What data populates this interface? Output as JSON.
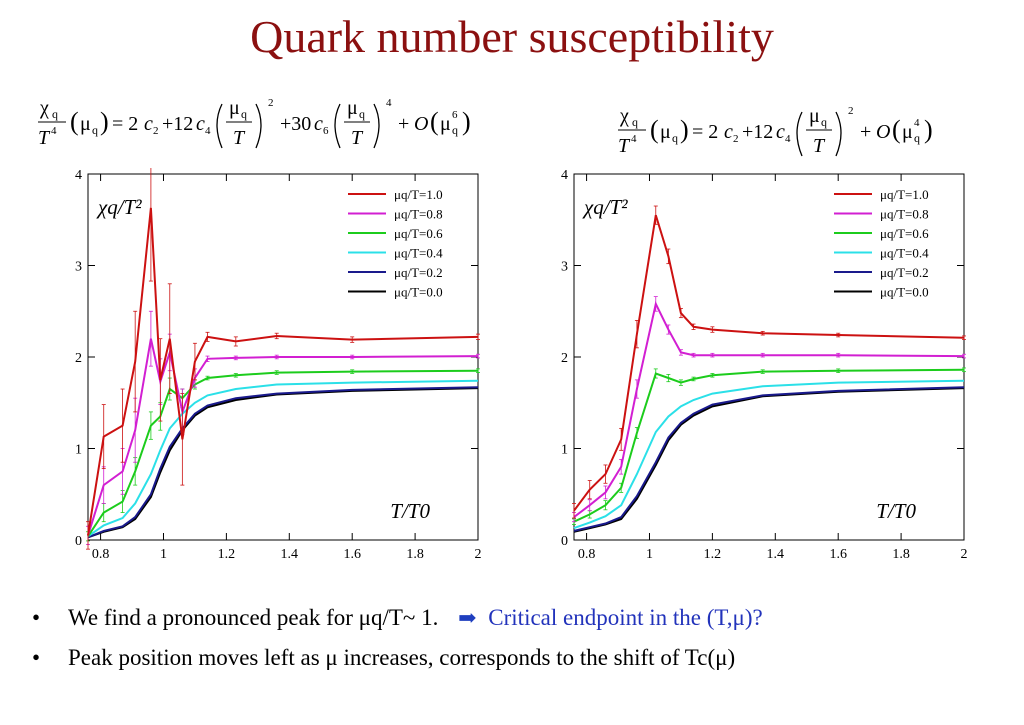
{
  "title": "Quark number susceptibility",
  "formulas": {
    "left": "χq/T⁴(μq) = 2c₂ + 12c₄(μq/T)² + 30c₆(μq/T)⁴ + O(μq⁶)",
    "right": "χq/T⁴(μq) = 2c₂ + 12c₄(μq/T)² + O(μq⁴)"
  },
  "bullets": [
    {
      "text": "We find a pronounced peak for μq/T~ 1.",
      "link": "Critical endpoint in the (T,μ)?"
    },
    {
      "text": "Peak position moves left as μ increases, corresponds to the shift of Tc(μ)"
    }
  ],
  "colors": {
    "title": "#8b1010",
    "red": "#cc1111",
    "magenta": "#d21fd2",
    "green": "#1ccc1c",
    "cyan": "#2be0e8",
    "blue": "#1a1a8c",
    "black": "#000000",
    "link": "#2233bb"
  },
  "chart_data": [
    {
      "type": "line",
      "ylabel": "χq/T²",
      "xlabel": "T/T0",
      "xlim": [
        0.76,
        2.0
      ],
      "ylim": [
        0,
        4
      ],
      "xticks": [
        "0.8",
        "1",
        "1.2",
        "1.4",
        "1.6",
        "1.8",
        "2"
      ],
      "yticks": [
        "0",
        "1",
        "2",
        "3",
        "4"
      ],
      "legend_position": "top-right",
      "x": [
        0.76,
        0.81,
        0.87,
        0.91,
        0.96,
        0.99,
        1.02,
        1.06,
        1.1,
        1.14,
        1.23,
        1.36,
        1.6,
        2.0
      ],
      "series": [
        {
          "name": "μq/T=1.0",
          "color": "red",
          "values": [
            0.05,
            1.13,
            1.25,
            1.95,
            3.63,
            1.75,
            2.2,
            1.1,
            1.95,
            2.22,
            2.17,
            2.23,
            2.19,
            2.22
          ],
          "errors": [
            0.15,
            0.35,
            0.4,
            0.55,
            0.8,
            0.45,
            0.6,
            0.5,
            0.2,
            0.05,
            0.05,
            0.03,
            0.03,
            0.03
          ]
        },
        {
          "name": "μq/T=0.8",
          "color": "magenta",
          "values": [
            0.05,
            0.6,
            0.75,
            1.2,
            2.2,
            1.73,
            2.05,
            1.4,
            1.77,
            1.98,
            1.99,
            2.0,
            2.0,
            2.01
          ],
          "errors": [
            0.1,
            0.2,
            0.25,
            0.35,
            0.3,
            0.25,
            0.2,
            0.25,
            0.1,
            0.03,
            0.02,
            0.02,
            0.02,
            0.02
          ]
        },
        {
          "name": "μq/T=0.6",
          "color": "green",
          "values": [
            0.04,
            0.3,
            0.42,
            0.75,
            1.25,
            1.35,
            1.65,
            1.55,
            1.7,
            1.77,
            1.8,
            1.83,
            1.84,
            1.85
          ],
          "errors": [
            0.05,
            0.1,
            0.12,
            0.15,
            0.15,
            0.15,
            0.12,
            0.1,
            0.05,
            0.02,
            0.02,
            0.02,
            0.02,
            0.02
          ]
        },
        {
          "name": "μq/T=0.4",
          "color": "cyan",
          "values": [
            0.04,
            0.16,
            0.24,
            0.4,
            0.72,
            0.98,
            1.22,
            1.38,
            1.5,
            1.58,
            1.65,
            1.7,
            1.72,
            1.74
          ],
          "errors": []
        },
        {
          "name": "μq/T=0.2",
          "color": "blue",
          "values": [
            0.03,
            0.1,
            0.15,
            0.25,
            0.5,
            0.78,
            1.02,
            1.22,
            1.38,
            1.47,
            1.55,
            1.6,
            1.64,
            1.67
          ],
          "errors": []
        },
        {
          "name": "μq/T=0.0",
          "color": "black",
          "values": [
            0.03,
            0.09,
            0.14,
            0.23,
            0.47,
            0.74,
            0.98,
            1.2,
            1.36,
            1.45,
            1.53,
            1.59,
            1.63,
            1.66
          ],
          "errors": []
        }
      ]
    },
    {
      "type": "line",
      "ylabel": "χq/T²",
      "xlabel": "T/T0",
      "xlim": [
        0.76,
        2.0
      ],
      "ylim": [
        0,
        4
      ],
      "xticks": [
        "0.8",
        "1",
        "1.2",
        "1.4",
        "1.6",
        "1.8",
        "2"
      ],
      "yticks": [
        "0",
        "1",
        "2",
        "3",
        "4"
      ],
      "legend_position": "top-right",
      "x": [
        0.76,
        0.81,
        0.86,
        0.91,
        0.96,
        1.02,
        1.06,
        1.1,
        1.14,
        1.2,
        1.36,
        1.6,
        2.0
      ],
      "series": [
        {
          "name": "μq/T=1.0",
          "color": "red",
          "values": [
            0.32,
            0.55,
            0.72,
            1.1,
            2.25,
            3.55,
            3.1,
            2.48,
            2.33,
            2.3,
            2.26,
            2.24,
            2.21
          ],
          "errors": [
            0.08,
            0.1,
            0.1,
            0.12,
            0.15,
            0.1,
            0.08,
            0.05,
            0.03,
            0.03,
            0.02,
            0.02,
            0.02
          ]
        },
        {
          "name": "μq/T=0.8",
          "color": "magenta",
          "values": [
            0.25,
            0.38,
            0.52,
            0.8,
            1.65,
            2.58,
            2.3,
            2.05,
            2.02,
            2.02,
            2.02,
            2.02,
            2.01
          ],
          "errors": [
            0.05,
            0.06,
            0.07,
            0.08,
            0.1,
            0.08,
            0.05,
            0.03,
            0.02,
            0.02,
            0.02,
            0.02,
            0.02
          ]
        },
        {
          "name": "μq/T=0.6",
          "color": "green",
          "values": [
            0.2,
            0.28,
            0.38,
            0.57,
            1.17,
            1.82,
            1.77,
            1.72,
            1.76,
            1.8,
            1.84,
            1.85,
            1.86
          ],
          "errors": [
            0.03,
            0.04,
            0.05,
            0.05,
            0.06,
            0.05,
            0.04,
            0.03,
            0.02,
            0.02,
            0.02,
            0.02,
            0.02
          ]
        },
        {
          "name": "μq/T=0.4",
          "color": "cyan",
          "values": [
            0.13,
            0.19,
            0.26,
            0.38,
            0.72,
            1.18,
            1.35,
            1.46,
            1.53,
            1.6,
            1.68,
            1.72,
            1.74
          ],
          "errors": []
        },
        {
          "name": "μq/T=0.2",
          "color": "blue",
          "values": [
            0.1,
            0.14,
            0.18,
            0.25,
            0.48,
            0.85,
            1.12,
            1.28,
            1.38,
            1.48,
            1.58,
            1.63,
            1.67
          ],
          "errors": []
        },
        {
          "name": "μq/T=0.0",
          "color": "black",
          "values": [
            0.09,
            0.13,
            0.17,
            0.23,
            0.45,
            0.82,
            1.09,
            1.26,
            1.36,
            1.46,
            1.57,
            1.62,
            1.66
          ],
          "errors": []
        }
      ]
    }
  ]
}
